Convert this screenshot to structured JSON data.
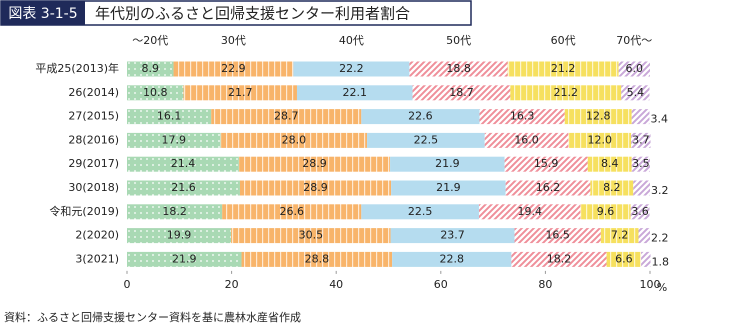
{
  "chart_data": {
    "type": "stacked_barh",
    "figure_number": "図表 3-1-5",
    "title": "年代別のふるさと回帰支援センター利用者割合",
    "categories": [
      "平成25(2013)年",
      "26(2014)",
      "27(2015)",
      "28(2016)",
      "29(2017)",
      "30(2018)",
      "令和元(2019)",
      "2(2020)",
      "3(2021)"
    ],
    "series": [
      {
        "name": "～20代",
        "color": "#a9d9b4",
        "pattern": "dots",
        "values": [
          8.9,
          10.8,
          16.1,
          17.9,
          21.4,
          21.6,
          18.2,
          19.9,
          21.9
        ]
      },
      {
        "name": "30代",
        "color": "#f8b46a",
        "pattern": "vstripes",
        "values": [
          22.9,
          21.7,
          28.7,
          28.0,
          28.9,
          28.9,
          26.6,
          30.5,
          28.8
        ],
        "value_labels": [
          "22.9",
          "21.7",
          "28.7",
          "28.0",
          "28.9",
          "28.9",
          "26.6",
          "30.5",
          "28.8"
        ]
      },
      {
        "name": "40代",
        "color": "#b5dcef",
        "pattern": "solid",
        "values": [
          22.2,
          22.1,
          22.6,
          22.5,
          21.9,
          21.9,
          22.5,
          23.7,
          22.8
        ]
      },
      {
        "name": "50代",
        "color": "#ef8f9a",
        "pattern": "hatch",
        "values": [
          18.8,
          18.7,
          16.3,
          16.0,
          15.9,
          16.2,
          19.4,
          16.5,
          18.2
        ],
        "value_labels": [
          "18.8",
          "18.7",
          "16.3",
          "16.0",
          "15.9",
          "16.2",
          "19.4",
          "16.5",
          "18.2"
        ]
      },
      {
        "name": "60代",
        "color": "#f6e05f",
        "pattern": "vstripes",
        "values": [
          21.2,
          21.2,
          12.8,
          12.0,
          8.4,
          8.2,
          9.6,
          7.2,
          6.6
        ],
        "value_labels": [
          "21.2",
          "21.2",
          "12.8",
          "12.0",
          "8.4",
          "8.2",
          "9.6",
          "7.2",
          "6.6"
        ]
      },
      {
        "name": "70代～",
        "color": "#c9a8d8",
        "pattern": "hatch",
        "values": [
          6.0,
          5.4,
          3.4,
          3.7,
          3.5,
          3.2,
          3.6,
          2.2,
          1.8
        ],
        "value_labels": [
          "6.0",
          "5.4",
          "3.4",
          "3.7",
          "3.5",
          "3.2",
          "3.6",
          "2.2",
          "1.8"
        ]
      }
    ],
    "xlim": [
      0,
      100
    ],
    "xticks": [
      0,
      20,
      40,
      60,
      80,
      100
    ],
    "x_label": "%",
    "grid": false,
    "source": "資料：ふるさと回帰支援センター資料を基に農林水産省作成"
  }
}
